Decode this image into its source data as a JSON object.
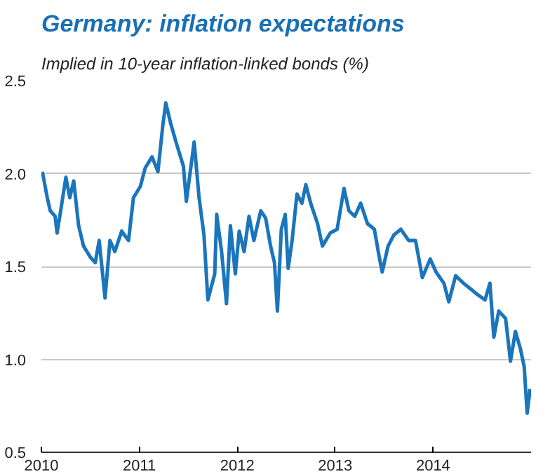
{
  "chart_data": {
    "type": "line",
    "title": "Germany: inflation expectations",
    "subtitle": "Implied in 10-year inflation-linked bonds (%)",
    "x": [
      2010.01,
      2010.06,
      2010.09,
      2010.14,
      2010.16,
      2010.2,
      2010.25,
      2010.29,
      2010.33,
      2010.38,
      2010.43,
      2010.5,
      2010.55,
      2010.59,
      2010.65,
      2010.7,
      2010.75,
      2010.82,
      2010.89,
      2010.94,
      2011.01,
      2011.06,
      2011.13,
      2011.19,
      2011.24,
      2011.27,
      2011.32,
      2011.38,
      2011.45,
      2011.48,
      2011.52,
      2011.56,
      2011.61,
      2011.66,
      2011.7,
      2011.77,
      2011.79,
      2011.84,
      2011.89,
      2011.93,
      2011.98,
      2012.02,
      2012.07,
      2012.12,
      2012.17,
      2012.24,
      2012.29,
      2012.34,
      2012.38,
      2012.41,
      2012.45,
      2012.49,
      2012.52,
      2012.56,
      2012.61,
      2012.66,
      2012.7,
      2012.75,
      2012.82,
      2012.87,
      2012.95,
      2013.02,
      2013.09,
      2013.14,
      2013.2,
      2013.26,
      2013.33,
      2013.4,
      2013.45,
      2013.48,
      2013.54,
      2013.6,
      2013.67,
      2013.75,
      2013.82,
      2013.89,
      2013.97,
      2014.03,
      2014.11,
      2014.16,
      2014.23,
      2014.31,
      2014.38,
      2014.45,
      2014.53,
      2014.58,
      2014.62,
      2014.67,
      2014.74,
      2014.79,
      2014.84,
      2014.89,
      2014.93,
      2014.96,
      2014.99
    ],
    "series": [
      {
        "color": "#1a75bc",
        "values": [
          2.01,
          1.87,
          1.8,
          1.77,
          1.68,
          1.81,
          1.98,
          1.87,
          1.96,
          1.72,
          1.61,
          1.55,
          1.52,
          1.64,
          1.33,
          1.64,
          1.58,
          1.69,
          1.64,
          1.87,
          1.93,
          2.03,
          2.09,
          2.01,
          2.26,
          2.38,
          2.27,
          2.16,
          2.04,
          1.85,
          2.01,
          2.17,
          1.87,
          1.67,
          1.32,
          1.46,
          1.78,
          1.58,
          1.3,
          1.72,
          1.46,
          1.69,
          1.58,
          1.77,
          1.64,
          1.8,
          1.76,
          1.61,
          1.52,
          1.26,
          1.7,
          1.78,
          1.49,
          1.64,
          1.89,
          1.84,
          1.94,
          1.84,
          1.73,
          1.61,
          1.68,
          1.7,
          1.92,
          1.8,
          1.77,
          1.84,
          1.73,
          1.7,
          1.55,
          1.47,
          1.61,
          1.67,
          1.7,
          1.64,
          1.64,
          1.44,
          1.54,
          1.47,
          1.41,
          1.31,
          1.45,
          1.41,
          1.38,
          1.35,
          1.32,
          1.41,
          1.12,
          1.26,
          1.22,
          0.99,
          1.15,
          1.06,
          0.96,
          0.71,
          0.84
        ]
      }
    ],
    "xlim": [
      2010,
      2015
    ],
    "xticks": [
      2010,
      2011,
      2012,
      2013,
      2014
    ],
    "ylim": [
      0.5,
      2.5
    ],
    "yticks": [
      0.5,
      {
        "value": 1,
        "label": "1.0"
      },
      1.5,
      {
        "value": 2,
        "label": "2.0"
      },
      2.5
    ],
    "grid": "y",
    "marker": "none",
    "line_style": "solid"
  }
}
